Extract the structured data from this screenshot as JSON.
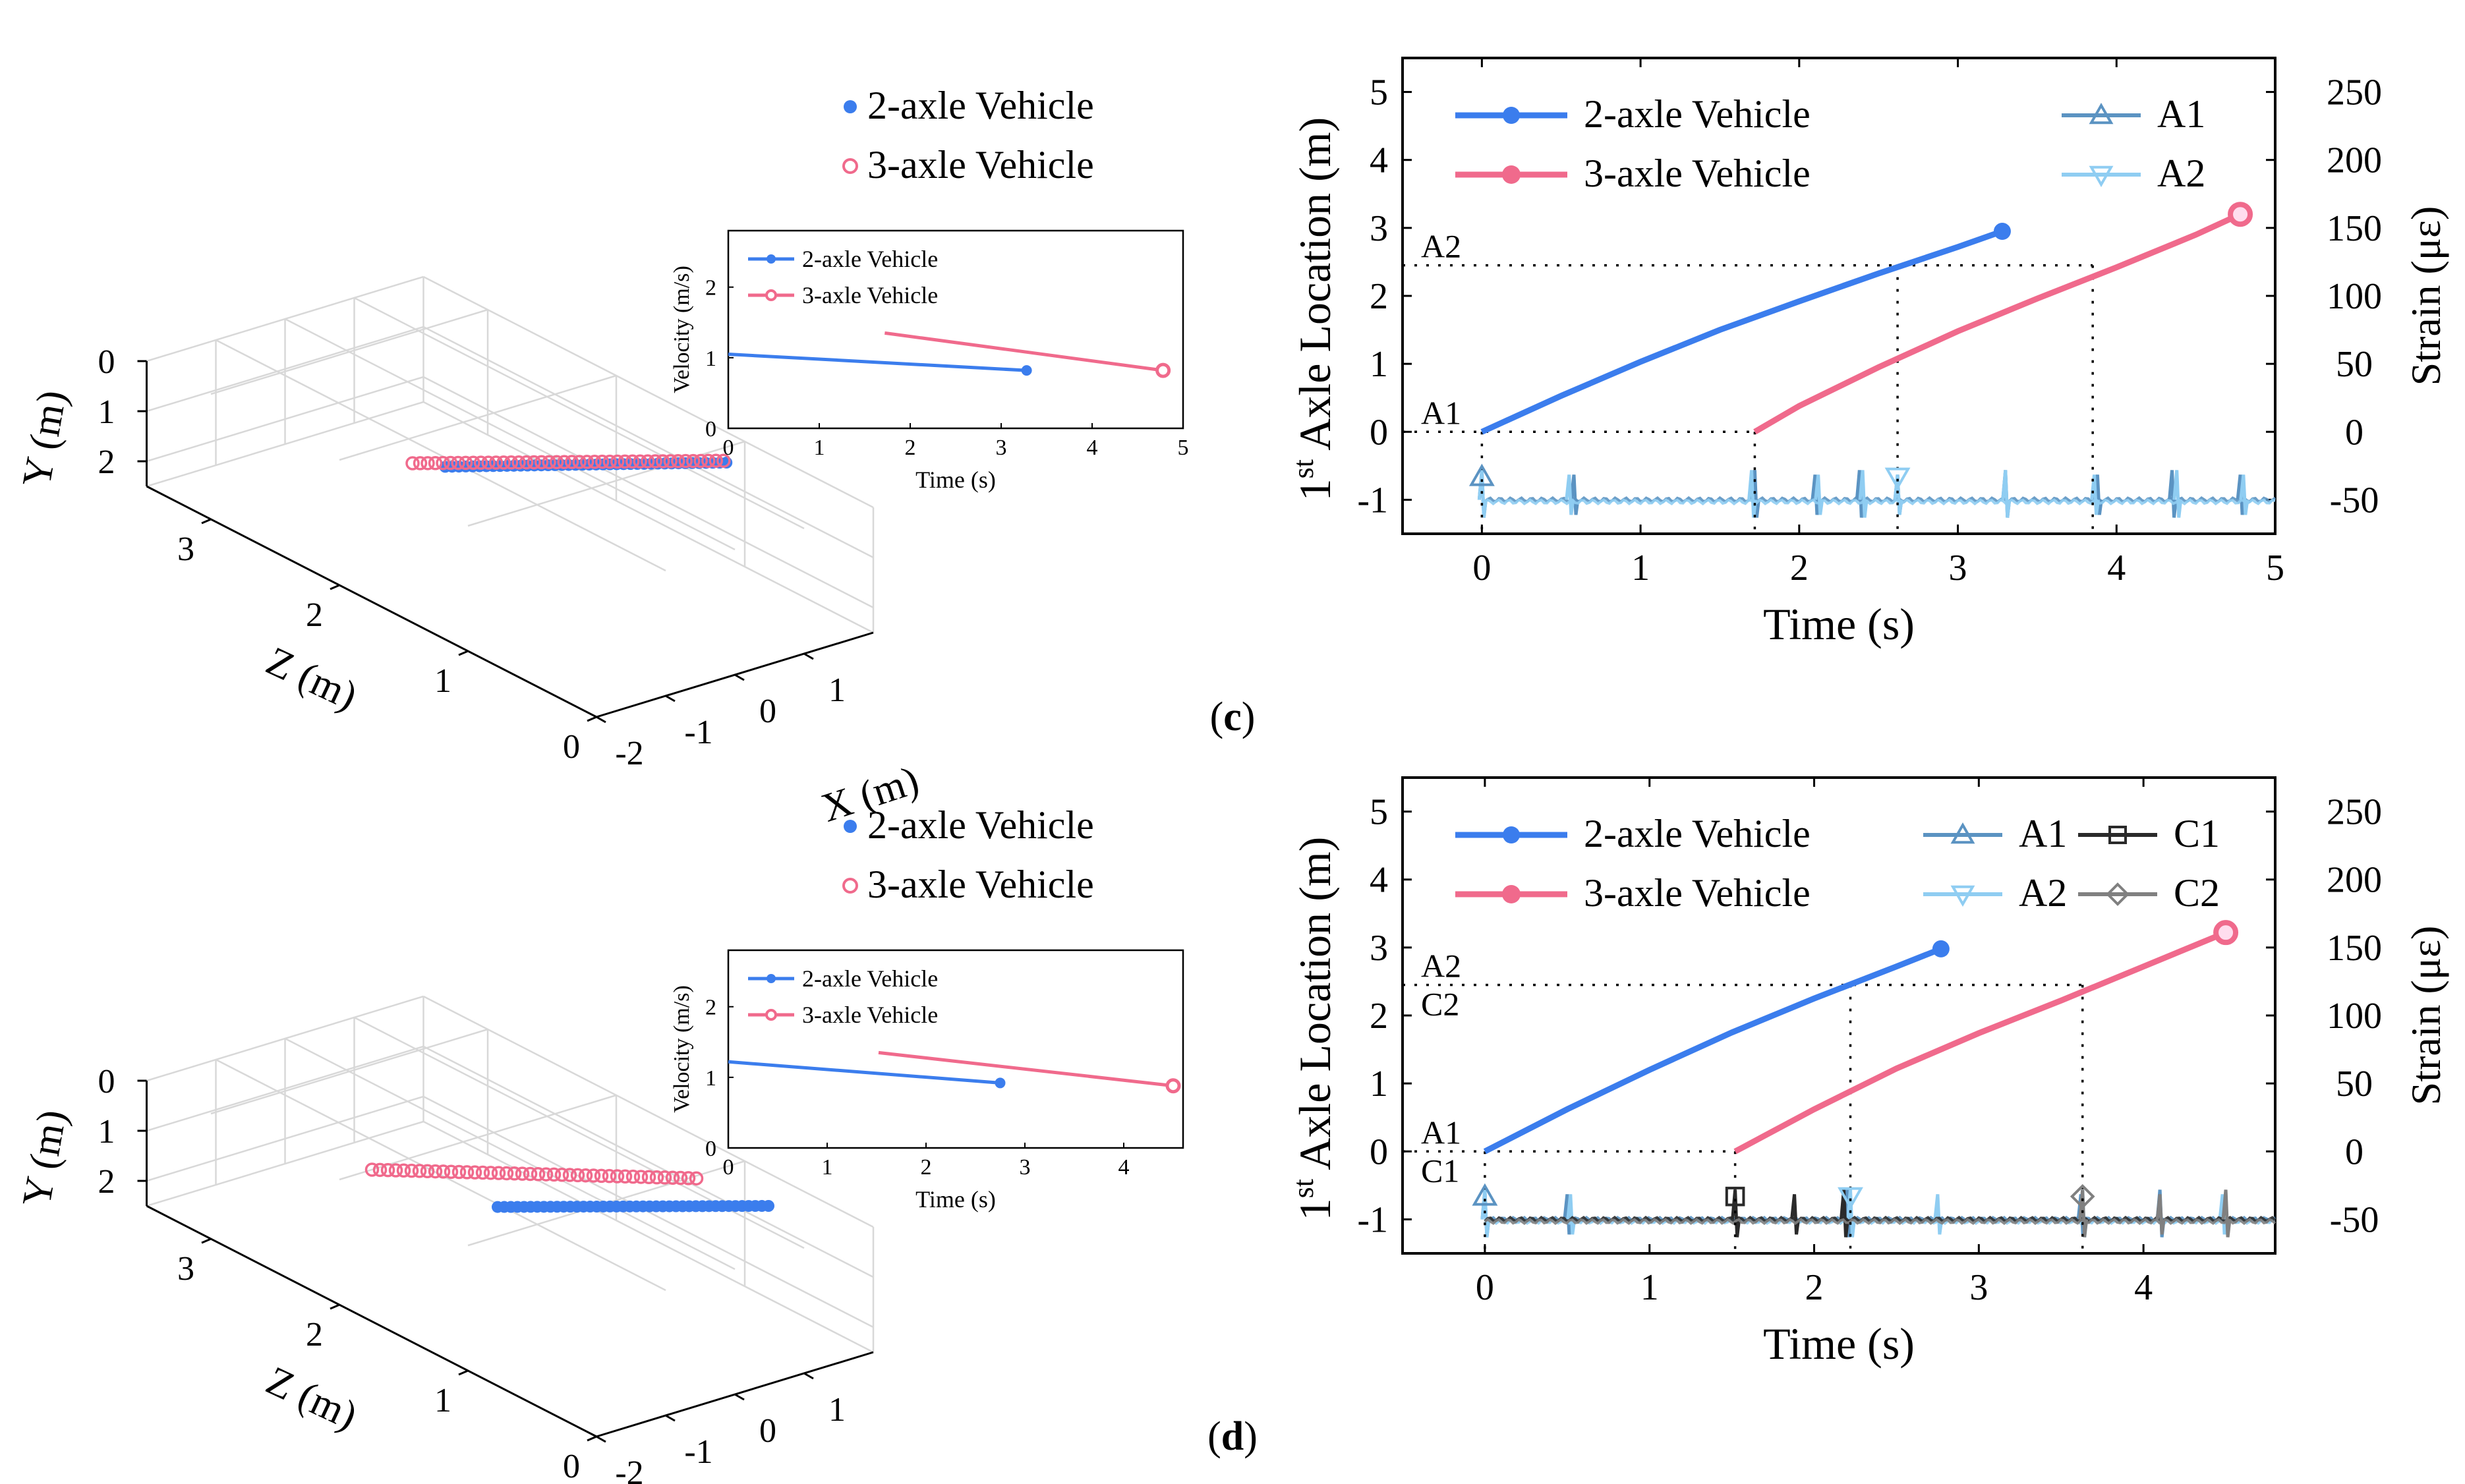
{
  "colors": {
    "blue": "#3B7DED",
    "pink": "#F06A8C",
    "A1": "#5B93C2",
    "A2": "#8FCDF2",
    "C1": "#2A2A2A",
    "C2": "#808080",
    "axis": "#000000",
    "box": "#d8d8d8"
  },
  "panels": [
    {
      "label": "(c)",
      "label_letter": "c",
      "p3d": {
        "series": [
          {
            "name": "2-axle Vehicle",
            "color": "#3B7DED",
            "marker": "dot",
            "start": [
              -0.1,
              1.2,
              2.2
            ],
            "end": [
              1.55,
              0.1,
              0.9
            ]
          },
          {
            "name": "3-axle Vehicle",
            "color": "#F06A8C",
            "marker": "ring",
            "start": [
              -0.2,
              1.35,
              2.4
            ],
            "end": [
              1.6,
              0.15,
              0.95
            ]
          }
        ],
        "xlabel": "X (m)",
        "ylabel": "Y (m)",
        "zlabel": "Z (m)",
        "xticks": [
          "-2",
          "-1",
          "0",
          "1"
        ],
        "yticks": [
          "0",
          "1",
          "2"
        ],
        "zticks": [
          "0",
          "1",
          "2",
          "3"
        ]
      },
      "inset": {
        "ylabel": "Velocity (m/s)",
        "xlabel": "Time (s)",
        "xlim": [
          0,
          5
        ],
        "ylim": [
          0,
          2.8
        ],
        "xticks": [
          "0",
          "1",
          "2",
          "3",
          "4",
          "5"
        ],
        "yticks": [
          "0",
          "1",
          "2"
        ],
        "series": [
          {
            "name": "2-axle Vehicle",
            "color": "#3B7DED",
            "x": [
              0,
              3.28
            ],
            "y": [
              1.05,
              0.82
            ]
          },
          {
            "name": "3-axle Vehicle",
            "color": "#F06A8C",
            "x": [
              1.72,
              4.78
            ],
            "y": [
              1.35,
              0.82
            ]
          }
        ]
      },
      "chart_data": {
        "type": "line",
        "xlabel": "Time (s)",
        "ylabel": "1st Axle Location (m)",
        "ylabel_main": "1",
        "ylabel_sup": "st",
        "ylabel_rest": " Axle Location (m)",
        "ylabel2": "Strain (με)",
        "xlim": [
          -0.5,
          5
        ],
        "ylim": [
          -1.5,
          5.5
        ],
        "y2lim": [
          -75,
          275
        ],
        "xticks": [
          "0",
          "1",
          "2",
          "3",
          "4",
          "5"
        ],
        "yticks": [
          "-1",
          "0",
          "1",
          "2",
          "3",
          "4",
          "5"
        ],
        "y2ticks": [
          "-50",
          "0",
          "50",
          "100",
          "150",
          "200",
          "250"
        ],
        "series": [
          {
            "name": "2-axle Vehicle",
            "color": "#3B7DED",
            "x": [
              0,
              0.5,
              1.0,
              1.5,
              2.0,
              2.5,
              3.0,
              3.28
            ],
            "y": [
              0,
              0.53,
              1.03,
              1.5,
              1.92,
              2.33,
              2.72,
              2.95
            ]
          },
          {
            "name": "3-axle Vehicle",
            "color": "#F06A8C",
            "x": [
              1.72,
              2.0,
              2.5,
              3.0,
              3.5,
              4.0,
              4.5,
              4.78
            ],
            "y": [
              0,
              0.38,
              0.95,
              1.48,
              1.96,
              2.42,
              2.9,
              3.2
            ]
          }
        ],
        "sensors": [
          {
            "name": "A1",
            "color": "#5B93C2",
            "marker": "triangle-up",
            "t": 0.0,
            "spikes": [
              0,
              0.58,
              1.72,
              2.1,
              2.38,
              2.62,
              3.3,
              3.88,
              4.35,
              4.78
            ]
          },
          {
            "name": "A2",
            "color": "#8FCDF2",
            "marker": "triangle-down",
            "t": 2.62,
            "spikes": [
              0,
              0.55,
              1.7,
              2.12,
              2.4,
              2.62,
              3.3,
              3.86,
              4.38,
              4.8
            ]
          }
        ],
        "ref_lines": [
          {
            "label": "A2",
            "y": 2.45,
            "xs": [
              2.62,
              3.85
            ]
          },
          {
            "label": "A1",
            "y": 0,
            "xs": [
              0,
              1.72
            ]
          }
        ]
      }
    },
    {
      "label": "(d)",
      "label_letter": "d",
      "p3d": {
        "series": [
          {
            "name": "2-axle Vehicle",
            "color": "#3B7DED",
            "marker": "dot",
            "start": [
              0.1,
              1.3,
              1.9
            ],
            "end": [
              1.6,
              0.2,
              0.6
            ]
          },
          {
            "name": "3-axle Vehicle",
            "color": "#F06A8C",
            "marker": "ring",
            "start": [
              -0.6,
              1.05,
              2.5
            ],
            "end": [
              1.3,
              0.05,
              1.0
            ]
          }
        ],
        "xlabel": "X (m)",
        "ylabel": "Y (m)",
        "zlabel": "Z (m)",
        "xticks": [
          "-2",
          "-1",
          "0",
          "1"
        ],
        "yticks": [
          "0",
          "1",
          "2"
        ],
        "zticks": [
          "0",
          "1",
          "2",
          "3"
        ]
      },
      "inset": {
        "ylabel": "Velocity (m/s)",
        "xlabel": "Time (s)",
        "xlim": [
          0,
          4.6
        ],
        "ylim": [
          0,
          2.8
        ],
        "xticks": [
          "0",
          "1",
          "2",
          "3",
          "4"
        ],
        "yticks": [
          "0",
          "1",
          "2"
        ],
        "series": [
          {
            "name": "2-axle Vehicle",
            "color": "#3B7DED",
            "x": [
              0,
              2.75
            ],
            "y": [
              1.22,
              0.92
            ]
          },
          {
            "name": "3-axle Vehicle",
            "color": "#F06A8C",
            "x": [
              1.52,
              4.5
            ],
            "y": [
              1.35,
              0.88
            ]
          }
        ]
      },
      "chart_data": {
        "type": "line",
        "xlabel": "Time (s)",
        "ylabel": "1st Axle Location (m)",
        "ylabel_main": "1",
        "ylabel_sup": "st",
        "ylabel_rest": " Axle Location (m)",
        "ylabel2": "Strain (με)",
        "xlim": [
          -0.5,
          4.8
        ],
        "ylim": [
          -1.5,
          5.5
        ],
        "y2lim": [
          -75,
          275
        ],
        "xticks": [
          "0",
          "1",
          "2",
          "3",
          "4"
        ],
        "yticks": [
          "-1",
          "0",
          "1",
          "2",
          "3",
          "4",
          "5"
        ],
        "y2ticks": [
          "-50",
          "0",
          "50",
          "100",
          "150",
          "200",
          "250"
        ],
        "series": [
          {
            "name": "2-axle Vehicle",
            "color": "#3B7DED",
            "x": [
              0,
              0.5,
              1.0,
              1.5,
              2.0,
              2.5,
              2.77
            ],
            "y": [
              0,
              0.62,
              1.2,
              1.75,
              2.25,
              2.72,
              2.98
            ]
          },
          {
            "name": "3-axle Vehicle",
            "color": "#F06A8C",
            "x": [
              1.52,
              2.0,
              2.5,
              3.0,
              3.5,
              4.0,
              4.5
            ],
            "y": [
              0,
              0.62,
              1.22,
              1.74,
              2.22,
              2.72,
              3.22
            ]
          }
        ],
        "sensors": [
          {
            "name": "A1",
            "color": "#5B93C2",
            "marker": "triangle-up",
            "t": 0.0,
            "spikes": [
              0,
              0.5,
              2.2,
              3.62,
              4.1
            ]
          },
          {
            "name": "A2",
            "color": "#8FCDF2",
            "marker": "triangle-down",
            "t": 2.22,
            "spikes": [
              0,
              0.52,
              2.22,
              2.75,
              3.63,
              4.48
            ]
          },
          {
            "name": "C1",
            "color": "#2A2A2A",
            "marker": "square",
            "t": 1.52,
            "spikes": [
              1.52,
              1.88,
              2.18
            ]
          },
          {
            "name": "C2",
            "color": "#808080",
            "marker": "diamond",
            "t": 3.63,
            "spikes": [
              3.63,
              4.1,
              4.5
            ]
          }
        ],
        "ref_lines": [
          {
            "label": "A2",
            "y": 2.45,
            "xs": [
              2.22,
              3.63
            ]
          },
          {
            "label": "C2",
            "y": 2.45,
            "xs": []
          },
          {
            "label": "A1",
            "y": 0,
            "xs": [
              0,
              1.52
            ]
          },
          {
            "label": "C1",
            "y": 0,
            "xs": []
          }
        ]
      }
    }
  ]
}
